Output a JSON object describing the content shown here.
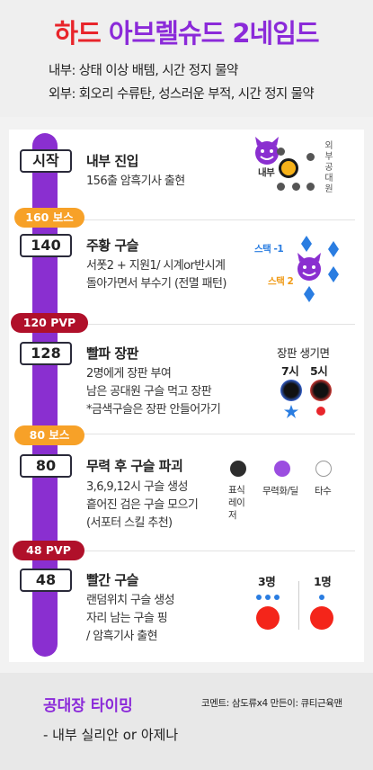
{
  "header": {
    "title_red": "하드",
    "title_purple": "아브렐슈드 2네임드",
    "line1": "내부: 상태 이상 배템, 시간 정지 물약",
    "line2": "외부: 회오리 수류탄, 성스러운 부적, 시간 정지 물약"
  },
  "sections": [
    {
      "step": "시작",
      "title": "내부 진입",
      "lines": [
        "156출 암흑기사 출현"
      ],
      "diagram": {
        "inner_label": "내부",
        "outer_label": [
          "외",
          "부",
          "공",
          "대",
          "원"
        ]
      }
    },
    {
      "pill": "160 보스",
      "step": "140",
      "title": "주황 구슬",
      "lines": [
        "서폿2 + 지원1/ 시계or반시계",
        "돌아가면서 부수기 (전멸 패턴)"
      ],
      "diagram": {
        "stack1": "스택 -1",
        "stack2": "스택 2"
      }
    },
    {
      "pill": "120 PVP",
      "step": "128",
      "title": "빨파 장판",
      "lines": [
        "2명에게 장판 부여",
        "남은 공대원 구슬 먹고 장판",
        "*금색구슬은 장판 안들어가기"
      ],
      "diagram": {
        "heading": "장판 생기면",
        "col1": "7시",
        "col2": "5시"
      }
    },
    {
      "pill": "80 보스",
      "step": "80",
      "title": "무력 후 구슬 파괴",
      "lines": [
        "3,6,9,12시 구슬 생성",
        "흩어진 검은 구슬 모으기",
        "(서포터 스킬 추천)"
      ],
      "diagram": {
        "black": "표식 레이저",
        "purple": "무력화/딜",
        "white": "타수"
      }
    },
    {
      "pill": "48 PVP",
      "step": "48",
      "title": "빨간 구슬",
      "lines": [
        "랜덤위치 구슬 생성",
        "자리 남는 구슬 핑",
        "/ 암흑기사 출현"
      ],
      "diagram": {
        "three": "3명",
        "one": "1명"
      }
    }
  ],
  "footer": {
    "title": "공대장 타이밍",
    "credit": "코멘트: 삼도류x4  만든이: 큐티근육맨",
    "line": "- 내부 실리안 or 아제나"
  },
  "colors": {
    "purple": "#8a2fd0",
    "red": "#e8252b",
    "orange_pill": "#f7a128",
    "pvp_pill": "#b0102a",
    "orange_orb": "#f7b21a",
    "blue_diamond": "#2a7de1"
  }
}
